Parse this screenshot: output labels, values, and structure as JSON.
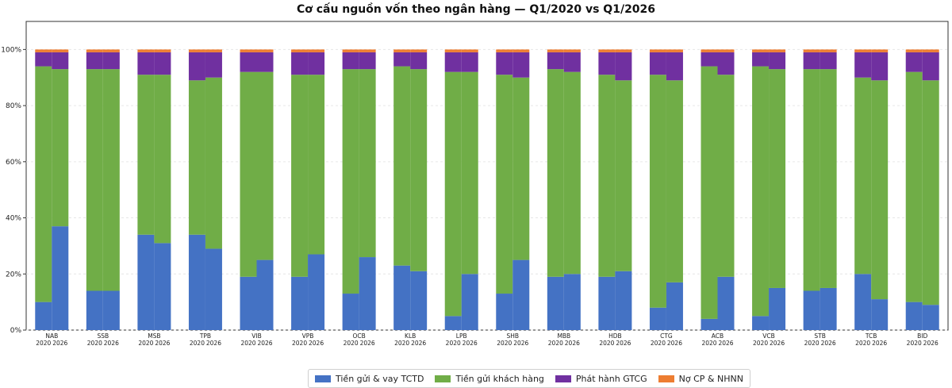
{
  "colors": {
    "tien_gui_tctd": "#4472c4",
    "tien_gui_kh": "#70ad47",
    "gtcg": "#7030a0",
    "no_cp": "#ed7d31"
  },
  "chart_data": {
    "type": "bar",
    "stacked": true,
    "title": "Cơ cấu nguồn vốn theo ngân hàng — Q1/2020 vs Q1/2026",
    "xlabel": "",
    "ylabel": "",
    "ylim": [
      0,
      110
    ],
    "yticks": [
      "0%",
      "20%",
      "40%",
      "60%",
      "80%",
      "100%"
    ],
    "ytick_values": [
      0,
      20,
      40,
      60,
      80,
      100
    ],
    "grid": true,
    "legend_position": "bottom-center",
    "years": [
      "2020",
      "2026"
    ],
    "categories": [
      "NAB",
      "SSB",
      "MSB",
      "TPB",
      "VIB",
      "VPB",
      "OCB",
      "KLB",
      "LPB",
      "SHB",
      "MBB",
      "HDB",
      "CTG",
      "ACB",
      "VCB",
      "STB",
      "TCB",
      "BID"
    ],
    "series": [
      {
        "name": "Tiền gửi & vay TCTD",
        "color_key": "tien_gui_tctd",
        "values_2020": [
          10,
          14,
          34,
          34,
          19,
          19,
          13,
          23,
          5,
          13,
          19,
          19,
          8,
          4,
          5,
          14,
          20,
          10
        ],
        "values_2026": [
          37,
          14,
          31,
          29,
          25,
          27,
          26,
          21,
          20,
          25,
          20,
          21,
          17,
          19,
          15,
          15,
          11,
          9
        ]
      },
      {
        "name": "Tiền gửi khách hàng",
        "color_key": "tien_gui_kh",
        "values_2020": [
          84,
          79,
          57,
          55,
          73,
          72,
          80,
          71,
          87,
          78,
          74,
          72,
          83,
          90,
          89,
          79,
          70,
          82
        ],
        "values_2026": [
          56,
          79,
          60,
          61,
          67,
          64,
          67,
          72,
          72,
          65,
          72,
          68,
          72,
          72,
          78,
          78,
          78,
          80
        ]
      },
      {
        "name": "Phát hành GTCG",
        "color_key": "gtcg",
        "values_2020": [
          5,
          6,
          8,
          10,
          7,
          8,
          6,
          5,
          7,
          8,
          6,
          8,
          8,
          5,
          5,
          6,
          9,
          7
        ],
        "values_2026": [
          6,
          6,
          8,
          9,
          7,
          8,
          6,
          6,
          7,
          9,
          7,
          10,
          10,
          8,
          6,
          6,
          10,
          10
        ]
      },
      {
        "name": "Nợ CP & NHNN",
        "color_key": "no_cp",
        "values_2020": [
          1,
          1,
          1,
          1,
          1,
          1,
          1,
          1,
          1,
          1,
          1,
          1,
          1,
          1,
          1,
          1,
          1,
          1
        ],
        "values_2026": [
          1,
          1,
          1,
          1,
          1,
          1,
          1,
          1,
          1,
          1,
          1,
          1,
          1,
          1,
          1,
          1,
          1,
          1
        ]
      }
    ]
  }
}
